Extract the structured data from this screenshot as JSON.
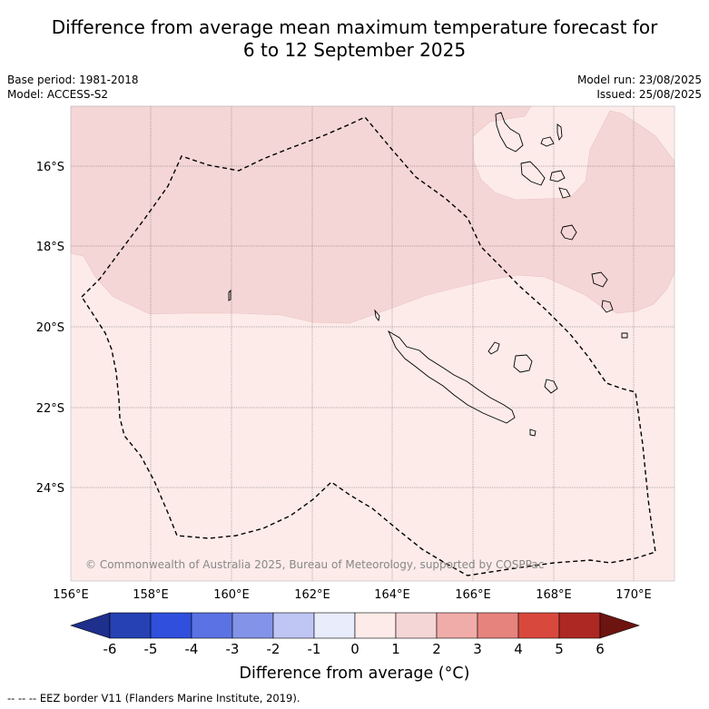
{
  "title_line1": "Difference from average mean maximum temperature forecast for",
  "title_line2": "6 to 12 September 2025",
  "meta": {
    "base_period": "Base period: 1981-2018",
    "model": "Model: ACCESS-S2",
    "model_run": "Model run: 23/08/2025",
    "issued": "Issued: 25/08/2025"
  },
  "map": {
    "lon_labels": [
      "156°E",
      "158°E",
      "160°E",
      "162°E",
      "164°E",
      "166°E",
      "168°E",
      "170°E"
    ],
    "lat_labels": [
      "16°S",
      "18°S",
      "20°S",
      "22°S",
      "24°S"
    ],
    "copyright": "© Commonwealth of Australia 2025, Bureau of Meteorology, supported by COSPPac",
    "fill_colors": {
      "zero_to_one": "#fcebe9",
      "one_to_two": "#f5d6d6"
    }
  },
  "colorbar": {
    "labels": [
      "-6",
      "-5",
      "-4",
      "-3",
      "-2",
      "-1",
      "0",
      "1",
      "2",
      "3",
      "4",
      "5",
      "6"
    ],
    "colors": [
      "#1e2f8c",
      "#2541b3",
      "#2f4fdc",
      "#5a72e3",
      "#8393e8",
      "#c0c6f4",
      "#e8ecfb",
      "#fcebe9",
      "#f5d6d6",
      "#f0aca8",
      "#e6837c",
      "#d9483c",
      "#ad2822",
      "#6e1410"
    ],
    "title": "Difference from average (",
    "title_symbol": "°C",
    "title_end": ")"
  },
  "footnote": "--  --  -- EEZ border V11 (Flanders Marine Institute, 2019)."
}
